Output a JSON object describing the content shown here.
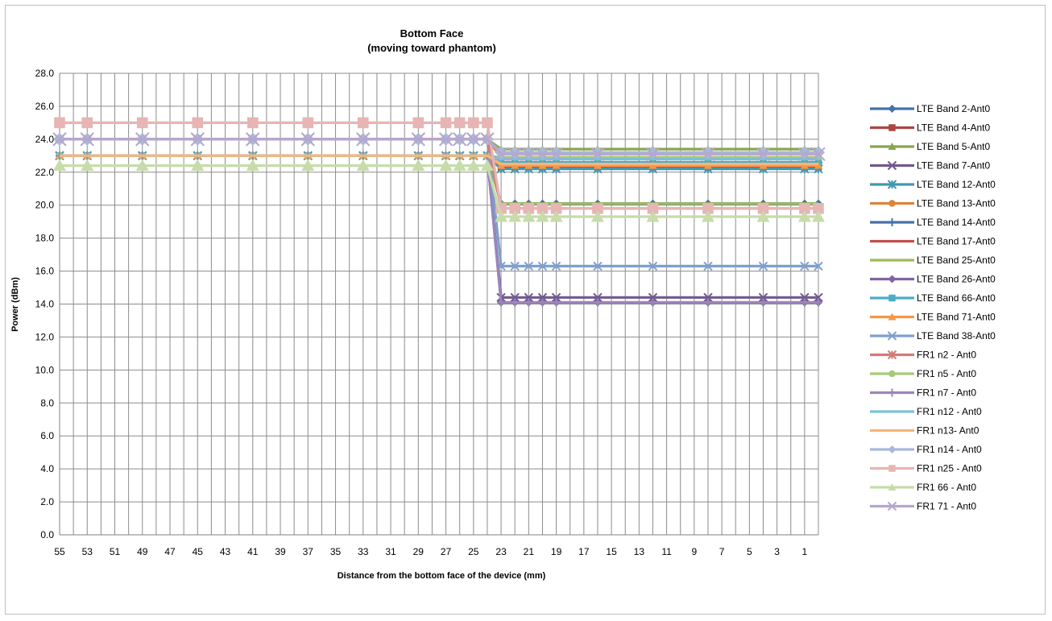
{
  "chart_data": {
    "type": "line",
    "title": "Bottom Face",
    "subtitle": "(moving toward phantom)",
    "xlabel": "Distance from the bottom face of the device (mm)",
    "ylabel": "Power (dBm)",
    "ylim": [
      0,
      28
    ],
    "y_ticks": [
      "0.0",
      "2.0",
      "4.0",
      "6.0",
      "8.0",
      "10.0",
      "12.0",
      "14.0",
      "16.0",
      "18.0",
      "20.0",
      "22.0",
      "24.0",
      "26.0",
      "28.0"
    ],
    "x_ticks": [
      "55",
      "53",
      "51",
      "49",
      "47",
      "45",
      "43",
      "41",
      "39",
      "37",
      "35",
      "33",
      "31",
      "29",
      "27",
      "25",
      "23",
      "21",
      "19",
      "17",
      "15",
      "13",
      "11",
      "9",
      "7",
      "5",
      "3",
      "1"
    ],
    "x_min": 55,
    "x_max": 0,
    "x": [
      55,
      53,
      49,
      45,
      41,
      37,
      33,
      29,
      27,
      26,
      25,
      24,
      23,
      22,
      21,
      20,
      19,
      16,
      12,
      8,
      4,
      1,
      0
    ],
    "grid": true,
    "legend_position": "right",
    "series": [
      {
        "name": "LTE Band 2-Ant0",
        "color": "#4572a7",
        "marker": "diamond",
        "values": [
          23,
          23,
          23,
          23,
          23,
          23,
          23,
          23,
          23,
          23,
          23,
          23,
          20.1,
          20.1,
          20.1,
          20.1,
          20.1,
          20.1,
          20.1,
          20.1,
          20.1,
          20.1,
          20.1
        ]
      },
      {
        "name": "LTE Band 4-Ant0",
        "color": "#aa4643",
        "marker": "square",
        "values": [
          23,
          23,
          23,
          23,
          23,
          23,
          23,
          23,
          23,
          23,
          23,
          23,
          22.3,
          22.3,
          22.3,
          22.3,
          22.3,
          22.3,
          22.3,
          22.3,
          22.3,
          22.3,
          22.3
        ]
      },
      {
        "name": "LTE Band 5-Ant0",
        "color": "#89a54e",
        "marker": "triangle",
        "values": [
          24,
          24,
          24,
          24,
          24,
          24,
          24,
          24,
          24,
          24,
          24,
          24,
          23.4,
          23.4,
          23.4,
          23.4,
          23.4,
          23.4,
          23.4,
          23.4,
          23.4,
          23.4,
          23.4
        ]
      },
      {
        "name": "LTE Band 7-Ant0",
        "color": "#71588f",
        "marker": "x",
        "values": [
          23,
          23,
          23,
          23,
          23,
          23,
          23,
          23,
          23,
          23,
          23,
          23,
          14.4,
          14.4,
          14.4,
          14.4,
          14.4,
          14.4,
          14.4,
          14.4,
          14.4,
          14.4,
          14.4
        ]
      },
      {
        "name": "LTE Band 12-Ant0",
        "color": "#4198af",
        "marker": "star",
        "values": [
          23,
          23,
          23,
          23,
          23,
          23,
          23,
          23,
          23,
          23,
          23,
          23,
          22.2,
          22.2,
          22.2,
          22.2,
          22.2,
          22.2,
          22.2,
          22.2,
          22.2,
          22.2,
          22.2
        ]
      },
      {
        "name": "LTE Band 13-Ant0",
        "color": "#db843d",
        "marker": "circle",
        "values": [
          24,
          24,
          24,
          24,
          24,
          24,
          24,
          24,
          24,
          24,
          24,
          24,
          22.9,
          22.9,
          22.9,
          22.9,
          22.9,
          22.9,
          22.9,
          22.9,
          22.9,
          22.9,
          22.9
        ]
      },
      {
        "name": "LTE Band 14-Ant0",
        "color": "#4572a7",
        "marker": "plus",
        "values": [
          23,
          23,
          23,
          23,
          23,
          23,
          23,
          23,
          23,
          23,
          23,
          23,
          22.6,
          22.6,
          22.6,
          22.6,
          22.6,
          22.6,
          22.6,
          22.6,
          22.6,
          22.6,
          22.6
        ]
      },
      {
        "name": "LTE Band 17-Ant0",
        "color": "#c0504d",
        "marker": "none",
        "values": [
          23,
          23,
          23,
          23,
          23,
          23,
          23,
          23,
          23,
          23,
          23,
          23,
          22.4,
          22.4,
          22.4,
          22.4,
          22.4,
          22.4,
          22.4,
          22.4,
          22.4,
          22.4,
          22.4
        ]
      },
      {
        "name": "LTE Band 25-Ant0",
        "color": "#9bbb59",
        "marker": "none",
        "values": [
          23,
          23,
          23,
          23,
          23,
          23,
          23,
          23,
          23,
          23,
          23,
          23,
          20.1,
          20.1,
          20.1,
          20.1,
          20.1,
          20.1,
          20.1,
          20.1,
          20.1,
          20.1,
          20.1
        ]
      },
      {
        "name": "LTE Band 26-Ant0",
        "color": "#8064a2",
        "marker": "diamond",
        "values": [
          23,
          23,
          23,
          23,
          23,
          23,
          23,
          23,
          23,
          23,
          23,
          23,
          14.1,
          14.1,
          14.1,
          14.1,
          14.1,
          14.1,
          14.1,
          14.1,
          14.1,
          14.1,
          14.1
        ]
      },
      {
        "name": "LTE Band 66-Ant0",
        "color": "#4bacc6",
        "marker": "square",
        "values": [
          23,
          23,
          23,
          23,
          23,
          23,
          23,
          23,
          23,
          23,
          23,
          23,
          22.6,
          22.6,
          22.6,
          22.6,
          22.6,
          22.6,
          22.6,
          22.6,
          22.6,
          22.6,
          22.6
        ]
      },
      {
        "name": "LTE Band 71-Ant0",
        "color": "#f79646",
        "marker": "triangle",
        "values": [
          23,
          23,
          23,
          23,
          23,
          23,
          23,
          23,
          23,
          23,
          23,
          23,
          22.4,
          22.4,
          22.4,
          22.4,
          22.4,
          22.4,
          22.4,
          22.4,
          22.4,
          22.4,
          22.4
        ]
      },
      {
        "name": "LTE Band 38-Ant0",
        "color": "#7f9fcf",
        "marker": "x",
        "values": [
          24,
          24,
          24,
          24,
          24,
          24,
          24,
          24,
          24,
          24,
          24,
          24,
          16.3,
          16.3,
          16.3,
          16.3,
          16.3,
          16.3,
          16.3,
          16.3,
          16.3,
          16.3,
          16.3
        ]
      },
      {
        "name": "FR1 n2 - Ant0",
        "color": "#d47a78",
        "marker": "star",
        "values": [
          24,
          24,
          24,
          24,
          24,
          24,
          24,
          24,
          24,
          24,
          24,
          24,
          19.8,
          19.8,
          19.8,
          19.8,
          19.8,
          19.8,
          19.8,
          19.8,
          19.8,
          19.8,
          19.8
        ]
      },
      {
        "name": "FR1 n5 - Ant0",
        "color": "#a9c978",
        "marker": "circle",
        "values": [
          23,
          23,
          23,
          23,
          23,
          23,
          23,
          23,
          23,
          23,
          23,
          23,
          22.9,
          22.9,
          22.9,
          22.9,
          22.9,
          22.9,
          22.9,
          22.9,
          22.9,
          22.9,
          22.9
        ]
      },
      {
        "name": "FR1 n7 - Ant0",
        "color": "#9b85b9",
        "marker": "plus",
        "values": [
          23,
          23,
          23,
          23,
          23,
          23,
          23,
          23,
          23,
          23,
          23,
          23,
          14.1,
          14.1,
          14.1,
          14.1,
          14.1,
          14.1,
          14.1,
          14.1,
          14.1,
          14.1,
          14.1
        ]
      },
      {
        "name": "FR1 n12 - Ant0",
        "color": "#78c3d6",
        "marker": "none",
        "values": [
          23,
          23,
          23,
          23,
          23,
          23,
          23,
          23,
          23,
          23,
          23,
          23,
          22.8,
          22.8,
          22.8,
          22.8,
          22.8,
          22.8,
          22.8,
          22.8,
          22.8,
          22.8,
          22.8
        ]
      },
      {
        "name": "FR1 n13- Ant0",
        "color": "#f8b57a",
        "marker": "none",
        "values": [
          23,
          23,
          23,
          23,
          23,
          23,
          23,
          23,
          23,
          23,
          23,
          23,
          22.5,
          22.5,
          22.5,
          22.5,
          22.5,
          22.5,
          22.5,
          22.5,
          22.5,
          22.5,
          22.5
        ]
      },
      {
        "name": "FR1 n14 - Ant0",
        "color": "#a9b9d9",
        "marker": "diamond",
        "values": [
          24,
          24,
          24,
          24,
          24,
          24,
          24,
          24,
          24,
          24,
          24,
          24,
          23.2,
          23.2,
          23.2,
          23.2,
          23.2,
          23.2,
          23.2,
          23.2,
          23.2,
          23.2,
          23.2
        ]
      },
      {
        "name": "FR1 n25 - Ant0",
        "color": "#e6b5b4",
        "marker": "square",
        "values": [
          25,
          25,
          25,
          25,
          25,
          25,
          25,
          25,
          25,
          25,
          25,
          25,
          19.8,
          19.8,
          19.8,
          19.8,
          19.8,
          19.8,
          19.8,
          19.8,
          19.8,
          19.8,
          19.8
        ]
      },
      {
        "name": "FR1 66 - Ant0",
        "color": "#c7dcaa",
        "marker": "triangle",
        "values": [
          22.4,
          22.4,
          22.4,
          22.4,
          22.4,
          22.4,
          22.4,
          22.4,
          22.4,
          22.4,
          22.4,
          22.4,
          19.3,
          19.3,
          19.3,
          19.3,
          19.3,
          19.3,
          19.3,
          19.3,
          19.3,
          19.3,
          19.3
        ]
      },
      {
        "name": "FR1 71 - Ant0",
        "color": "#b6a7cd",
        "marker": "x",
        "values": [
          24,
          24,
          24,
          24,
          24,
          24,
          24,
          24,
          24,
          24,
          24,
          24,
          23.1,
          23.1,
          23.1,
          23.1,
          23.1,
          23.1,
          23.1,
          23.1,
          23.1,
          23.1,
          23.1
        ]
      }
    ]
  }
}
